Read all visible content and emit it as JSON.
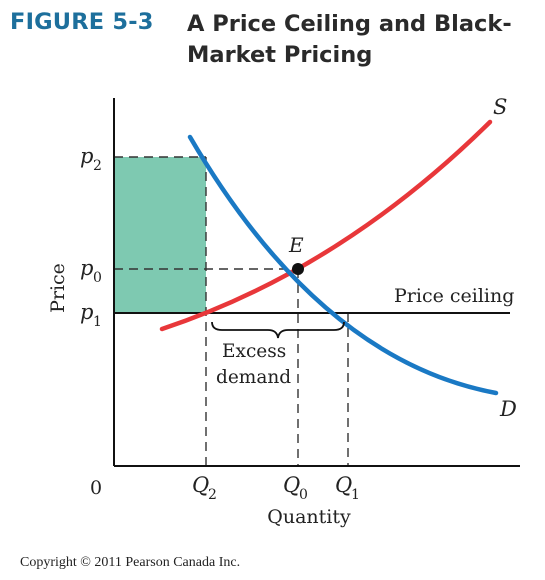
{
  "header": {
    "figure_label": "FIGURE 5-3",
    "title": "A Price Ceiling and Black-Market Pricing"
  },
  "axes": {
    "x_label": "Quantity",
    "y_label": "Price",
    "origin_label": "0"
  },
  "price_ticks": {
    "p2": "p",
    "p2_sub": "2",
    "p0": "p",
    "p0_sub": "0",
    "p1": "p",
    "p1_sub": "1"
  },
  "quantity_ticks": {
    "q2": "Q",
    "q2_sub": "2",
    "q0": "Q",
    "q0_sub": "0",
    "q1": "Q",
    "q1_sub": "1"
  },
  "curves": {
    "supply_label": "S",
    "demand_label": "D",
    "equilibrium_label": "E",
    "price_ceiling_label": "Price ceiling"
  },
  "annotations": {
    "excess_demand_line1": "Excess",
    "excess_demand_line2": "demand"
  },
  "colors": {
    "supply": "#e8373a",
    "demand": "#1a79c4",
    "black_market_area": "#7ec9b1"
  },
  "footer": {
    "copyright": "Copyright © 2011 Pearson Canada Inc."
  }
}
